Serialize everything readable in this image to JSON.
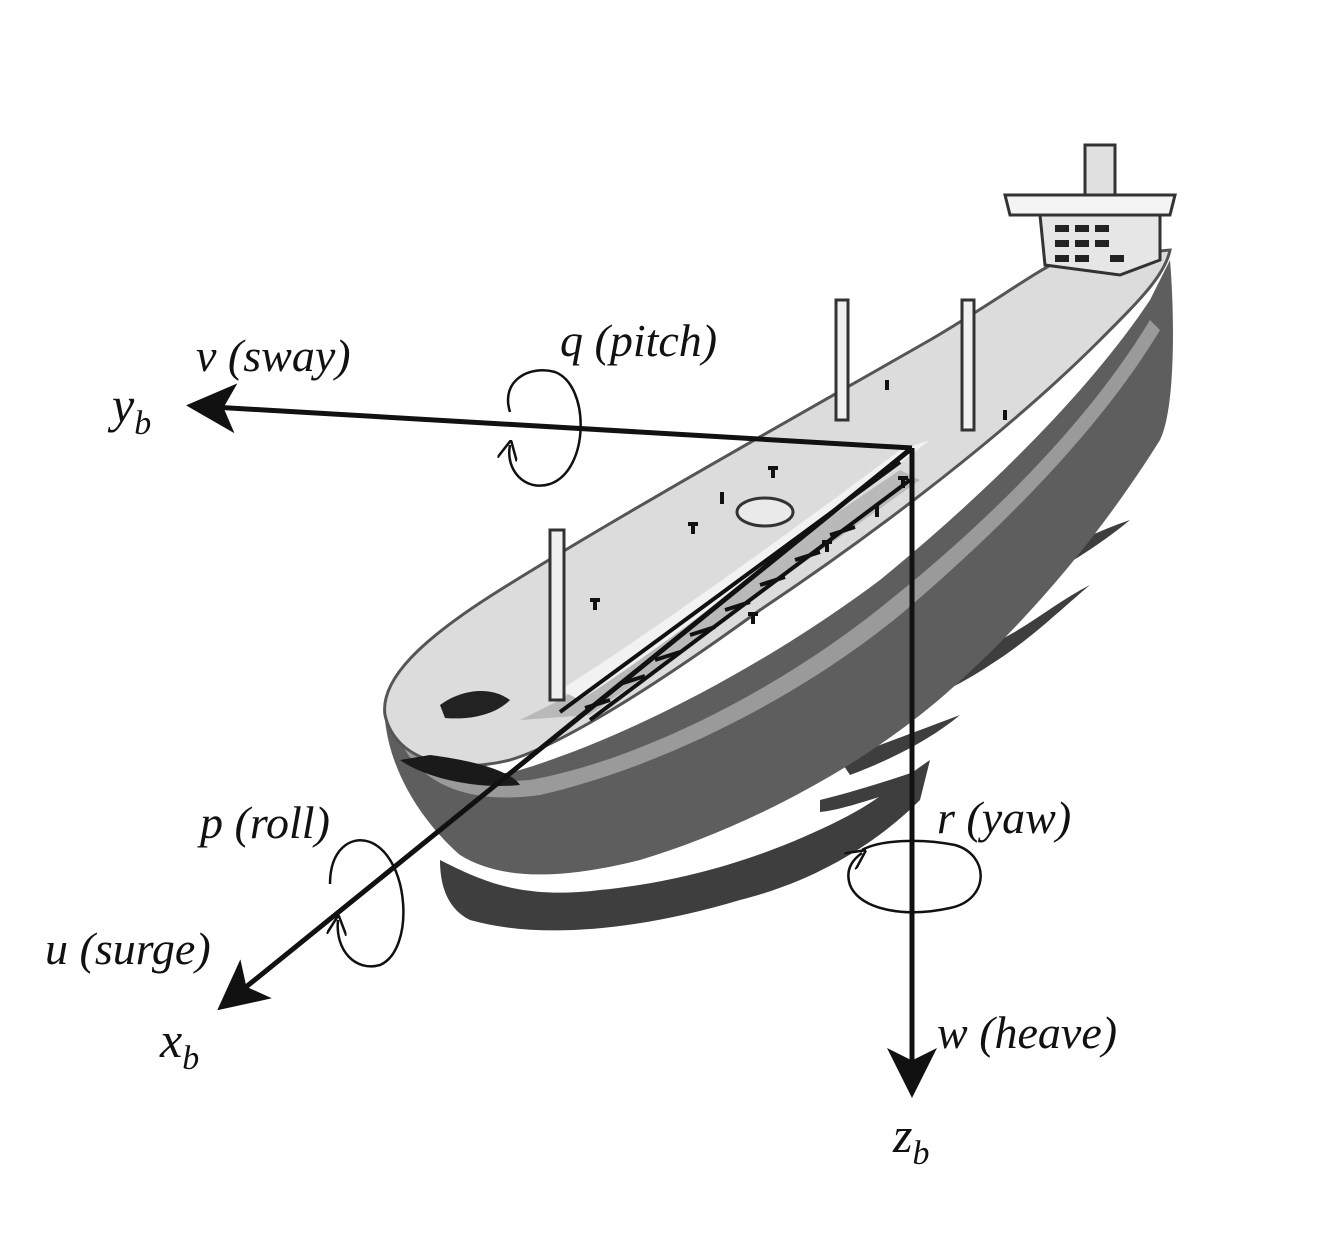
{
  "colors": {
    "background": "#ffffff",
    "axis": "#111111",
    "hull_dark": "#5e5e5e",
    "hull_mid": "#8c8c8c",
    "deck": "#dedede",
    "deck_light": "#f4f4f4",
    "water": "#3c3c3c"
  },
  "axes": {
    "y": {
      "symbol": "y",
      "sub": "b",
      "velocity_symbol": "v",
      "motion": "(sway)"
    },
    "x": {
      "symbol": "x",
      "sub": "b",
      "velocity_symbol": "u",
      "motion": "(surge)"
    },
    "z": {
      "symbol": "z",
      "sub": "b",
      "velocity_symbol": "w",
      "motion": "(heave)"
    }
  },
  "rotations": {
    "pitch": {
      "symbol": "q",
      "motion": "(pitch)"
    },
    "roll": {
      "symbol": "p",
      "motion": "(roll)"
    },
    "yaw": {
      "symbol": "r",
      "motion": "(yaw)"
    }
  },
  "icons": {
    "ship": "tanker-ship-illustration",
    "pitch_arrow": "curved-rotation-arrow-icon",
    "roll_arrow": "curved-rotation-arrow-icon",
    "yaw_arrow": "curved-rotation-arrow-icon"
  }
}
